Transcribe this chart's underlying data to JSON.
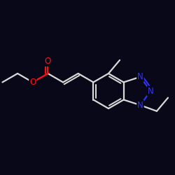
{
  "background_color": "#080818",
  "bond_color": "#d8d8d8",
  "nitrogen_color": "#3333ff",
  "oxygen_color": "#ff1111",
  "line_width": 1.6,
  "figsize": [
    2.5,
    2.5
  ],
  "dpi": 100,
  "xlim": [
    0,
    10
  ],
  "ylim": [
    0,
    10
  ]
}
